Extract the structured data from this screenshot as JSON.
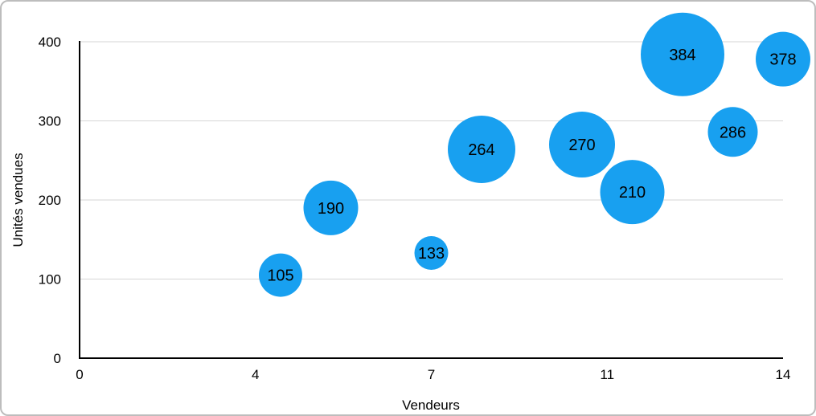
{
  "chart_data": {
    "type": "bubble",
    "title": "",
    "xlabel": "Vendeurs",
    "ylabel": "Unités vendues",
    "xlim": [
      0,
      14
    ],
    "ylim": [
      0,
      400
    ],
    "x_tick_labels": [
      "0",
      "4",
      "7",
      "11",
      "14"
    ],
    "y_tick_labels": [
      "0",
      "100",
      "200",
      "300",
      "400"
    ],
    "grid": "horizontal",
    "legend": "none",
    "colors": {
      "bubble_fill": "#18A0F0",
      "bubble_label": "#000000",
      "gridline": "#d6d6d6",
      "axis_line": "#000000",
      "tick_text": "#000000"
    },
    "points": [
      {
        "x": 4,
        "y": 105,
        "label": "105",
        "radius_px": 27
      },
      {
        "x": 5,
        "y": 190,
        "label": "190",
        "radius_px": 34
      },
      {
        "x": 7,
        "y": 133,
        "label": "133",
        "radius_px": 21
      },
      {
        "x": 8,
        "y": 264,
        "label": "264",
        "radius_px": 42
      },
      {
        "x": 10,
        "y": 270,
        "label": "270",
        "radius_px": 41
      },
      {
        "x": 11,
        "y": 210,
        "label": "210",
        "radius_px": 40
      },
      {
        "x": 12,
        "y": 384,
        "label": "384",
        "radius_px": 52
      },
      {
        "x": 13,
        "y": 286,
        "label": "286",
        "radius_px": 31
      },
      {
        "x": 14,
        "y": 378,
        "label": "378",
        "radius_px": 34
      }
    ]
  }
}
